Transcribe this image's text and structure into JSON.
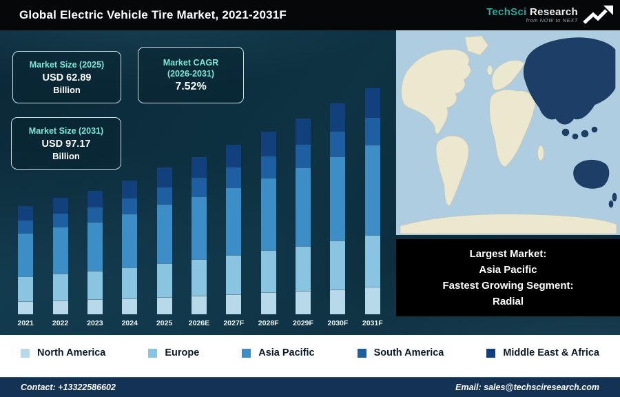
{
  "header": {
    "title": "Global Electric Vehicle Tire Market, 2021-2031F",
    "logo": {
      "brand_primary": "TechSci",
      "brand_secondary": "Research",
      "tagline": "from NOW to NEXT"
    }
  },
  "stat_boxes": [
    {
      "label": "Market Size (2025)",
      "value": "USD 62.89",
      "unit": "Billion"
    },
    {
      "label": "Market CAGR\n(2026-2031)",
      "value": "7.52%",
      "unit": ""
    },
    {
      "label": "Market Size (2031)",
      "value": "USD 97.17",
      "unit": "Billion"
    }
  ],
  "map": {
    "ocean_color": "#aecde1",
    "land_color": "#ece7cf",
    "highlight_color": "#1d3e66",
    "highlight_region": "Asia Pacific"
  },
  "callout": {
    "lines": [
      "Largest Market:",
      "Asia Pacific",
      "Fastest Growing Segment:",
      "Radial"
    ]
  },
  "footer": {
    "contact": "Contact: +13322586602",
    "email": "Email: sales@techsciresearch.com"
  },
  "chart_data": {
    "type": "bar",
    "stacked": true,
    "title": "Global Electric Vehicle Tire Market, 2021-2031F",
    "unit": "USD Billion",
    "categories": [
      "2021",
      "2022",
      "2023",
      "2024",
      "2025",
      "2026E",
      "2027F",
      "2028F",
      "2029F",
      "2030F",
      "2031F"
    ],
    "ylim": [
      0,
      100
    ],
    "grid": false,
    "legend_position": "bottom",
    "totals_estimated": [
      46.5,
      50.1,
      53.1,
      57.5,
      62.89,
      67.6,
      72.7,
      78.3,
      84.0,
      90.4,
      97.17
    ],
    "series": [
      {
        "name": "North America",
        "color": "#b7d9ea",
        "values": [
          5.6,
          6.0,
          6.4,
          6.9,
          7.5,
          8.1,
          8.7,
          9.4,
          10.1,
          10.8,
          11.7
        ]
      },
      {
        "name": "Europe",
        "color": "#89c4e1",
        "values": [
          10.7,
          11.5,
          12.2,
          13.2,
          14.5,
          15.6,
          16.7,
          18.0,
          19.3,
          20.8,
          22.3
        ]
      },
      {
        "name": "Asia Pacific",
        "color": "#3d8dc6",
        "values": [
          18.6,
          20.1,
          21.2,
          23.0,
          25.2,
          27.0,
          29.1,
          31.3,
          33.6,
          36.2,
          38.9
        ]
      },
      {
        "name": "South America",
        "color": "#1d5fa0",
        "values": [
          5.6,
          6.0,
          6.4,
          6.9,
          7.5,
          8.1,
          8.7,
          9.4,
          10.1,
          10.8,
          11.7
        ]
      },
      {
        "name": "Middle East & Africa",
        "color": "#12407d",
        "values": [
          6.0,
          6.5,
          6.9,
          7.5,
          8.2,
          8.8,
          9.5,
          10.2,
          10.9,
          11.8,
          12.6
        ]
      }
    ],
    "annotations": [
      "Market Size (2025): USD 62.89 Billion",
      "Market CAGR (2026-2031): 7.52%",
      "Market Size (2031): USD 97.17 Billion"
    ]
  }
}
